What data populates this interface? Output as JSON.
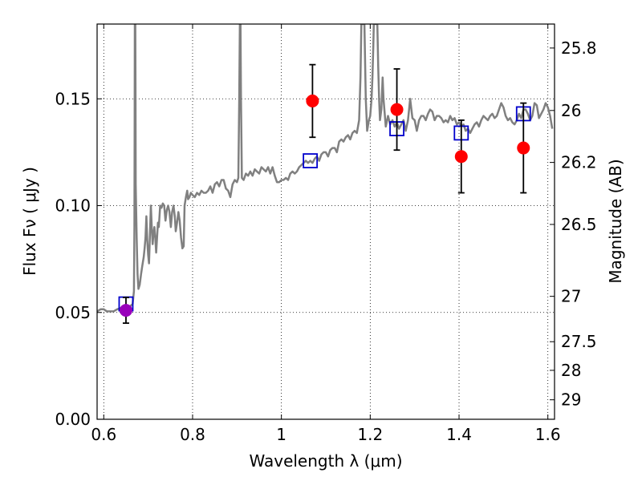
{
  "chart_data": {
    "type": "scatter",
    "xlabel": "Wavelength  λ (μm)",
    "ylabel_left": "Flux  Fν  ( μJy )",
    "ylabel_right": "Magnitude (AB)",
    "xlim": [
      0.585,
      1.615
    ],
    "ylim": [
      0.0,
      0.185
    ],
    "grid": true,
    "x_ticks": [
      {
        "value": 0.6,
        "label": "0.6"
      },
      {
        "value": 0.8,
        "label": "0.8"
      },
      {
        "value": 1.0,
        "label": "1"
      },
      {
        "value": 1.2,
        "label": "1.2"
      },
      {
        "value": 1.4,
        "label": "1.4"
      },
      {
        "value": 1.6,
        "label": "1.6"
      }
    ],
    "y_ticks": [
      {
        "value": 0.0,
        "label": "0.00"
      },
      {
        "value": 0.05,
        "label": "0.05"
      },
      {
        "value": 0.1,
        "label": "0.10"
      },
      {
        "value": 0.15,
        "label": "0.15"
      }
    ],
    "right_ticks": [
      {
        "value": 25.8,
        "label": "25.8"
      },
      {
        "value": 26.0,
        "label": "26"
      },
      {
        "value": 26.2,
        "label": "26.2"
      },
      {
        "value": 26.5,
        "label": "26.5"
      },
      {
        "value": 27.0,
        "label": "27"
      },
      {
        "value": 27.5,
        "label": "27.5"
      },
      {
        "value": 28.0,
        "label": "28"
      },
      {
        "value": 29.0,
        "label": "29"
      }
    ],
    "model_spectrum": {
      "color": "#808080",
      "points": [
        [
          0.585,
          0.0505
        ],
        [
          0.593,
          0.0515
        ],
        [
          0.6,
          0.0515
        ],
        [
          0.607,
          0.0505
        ],
        [
          0.615,
          0.0505
        ],
        [
          0.622,
          0.0505
        ],
        [
          0.63,
          0.0515
        ],
        [
          0.637,
          0.052
        ],
        [
          0.645,
          0.052
        ],
        [
          0.65,
          0.052
        ],
        [
          0.655,
          0.0525
        ],
        [
          0.66,
          0.053
        ],
        [
          0.665,
          0.054
        ],
        [
          0.668,
          0.06
        ],
        [
          0.669,
          0.09
        ],
        [
          0.6695,
          0.14
        ],
        [
          0.67,
          0.185
        ],
        [
          0.671,
          0.185
        ],
        [
          0.6715,
          0.15
        ],
        [
          0.672,
          0.11
        ],
        [
          0.674,
          0.085
        ],
        [
          0.676,
          0.068
        ],
        [
          0.678,
          0.061
        ],
        [
          0.681,
          0.063
        ],
        [
          0.684,
          0.068
        ],
        [
          0.687,
          0.072
        ],
        [
          0.69,
          0.076
        ],
        [
          0.692,
          0.08
        ],
        [
          0.694,
          0.085
        ],
        [
          0.696,
          0.095
        ],
        [
          0.698,
          0.084
        ],
        [
          0.7,
          0.077
        ],
        [
          0.702,
          0.073
        ],
        [
          0.704,
          0.087
        ],
        [
          0.706,
          0.1
        ],
        [
          0.708,
          0.09
        ],
        [
          0.71,
          0.082
        ],
        [
          0.712,
          0.087
        ],
        [
          0.714,
          0.09
        ],
        [
          0.716,
          0.085
        ],
        [
          0.718,
          0.078
        ],
        [
          0.72,
          0.085
        ],
        [
          0.722,
          0.092
        ],
        [
          0.724,
          0.09
        ],
        [
          0.727,
          0.1
        ],
        [
          0.73,
          0.099
        ],
        [
          0.733,
          0.101
        ],
        [
          0.736,
          0.1
        ],
        [
          0.739,
          0.093
        ],
        [
          0.742,
          0.098
        ],
        [
          0.745,
          0.1
        ],
        [
          0.748,
          0.097
        ],
        [
          0.751,
          0.09
        ],
        [
          0.754,
          0.097
        ],
        [
          0.757,
          0.1
        ],
        [
          0.76,
          0.095
        ],
        [
          0.762,
          0.088
        ],
        [
          0.765,
          0.092
        ],
        [
          0.768,
          0.097
        ],
        [
          0.771,
          0.093
        ],
        [
          0.774,
          0.085
        ],
        [
          0.777,
          0.08
        ],
        [
          0.78,
          0.081
        ],
        [
          0.782,
          0.1
        ],
        [
          0.785,
          0.104
        ],
        [
          0.788,
          0.107
        ],
        [
          0.79,
          0.103
        ],
        [
          0.793,
          0.104
        ],
        [
          0.796,
          0.106
        ],
        [
          0.8,
          0.105
        ],
        [
          0.805,
          0.104
        ],
        [
          0.81,
          0.106
        ],
        [
          0.815,
          0.105
        ],
        [
          0.82,
          0.107
        ],
        [
          0.825,
          0.106
        ],
        [
          0.83,
          0.106
        ],
        [
          0.835,
          0.107
        ],
        [
          0.84,
          0.109
        ],
        [
          0.845,
          0.106
        ],
        [
          0.85,
          0.11
        ],
        [
          0.855,
          0.111
        ],
        [
          0.86,
          0.109
        ],
        [
          0.865,
          0.112
        ],
        [
          0.87,
          0.112
        ],
        [
          0.875,
          0.108
        ],
        [
          0.88,
          0.107
        ],
        [
          0.885,
          0.104
        ],
        [
          0.89,
          0.11
        ],
        [
          0.895,
          0.112
        ],
        [
          0.9,
          0.111
        ],
        [
          0.903,
          0.113
        ],
        [
          0.905,
          0.15
        ],
        [
          0.9065,
          0.185
        ],
        [
          0.908,
          0.185
        ],
        [
          0.909,
          0.15
        ],
        [
          0.911,
          0.113
        ],
        [
          0.915,
          0.112
        ],
        [
          0.92,
          0.115
        ],
        [
          0.925,
          0.114
        ],
        [
          0.93,
          0.116
        ],
        [
          0.935,
          0.114
        ],
        [
          0.94,
          0.117
        ],
        [
          0.945,
          0.116
        ],
        [
          0.95,
          0.115
        ],
        [
          0.955,
          0.118
        ],
        [
          0.96,
          0.117
        ],
        [
          0.965,
          0.116
        ],
        [
          0.97,
          0.118
        ],
        [
          0.975,
          0.115
        ],
        [
          0.98,
          0.118
        ],
        [
          0.985,
          0.114
        ],
        [
          0.99,
          0.111
        ],
        [
          0.995,
          0.111
        ],
        [
          1.0,
          0.112
        ],
        [
          1.005,
          0.112
        ],
        [
          1.01,
          0.113
        ],
        [
          1.015,
          0.112
        ],
        [
          1.02,
          0.115
        ],
        [
          1.025,
          0.116
        ],
        [
          1.03,
          0.115
        ],
        [
          1.035,
          0.116
        ],
        [
          1.04,
          0.118
        ],
        [
          1.045,
          0.119
        ],
        [
          1.05,
          0.12
        ],
        [
          1.055,
          0.121
        ],
        [
          1.06,
          0.12
        ],
        [
          1.065,
          0.121
        ],
        [
          1.07,
          0.12
        ],
        [
          1.075,
          0.122
        ],
        [
          1.08,
          0.123
        ],
        [
          1.085,
          0.121
        ],
        [
          1.09,
          0.124
        ],
        [
          1.095,
          0.125
        ],
        [
          1.1,
          0.125
        ],
        [
          1.105,
          0.123
        ],
        [
          1.11,
          0.126
        ],
        [
          1.115,
          0.127
        ],
        [
          1.12,
          0.127
        ],
        [
          1.125,
          0.125
        ],
        [
          1.13,
          0.13
        ],
        [
          1.135,
          0.131
        ],
        [
          1.14,
          0.13
        ],
        [
          1.145,
          0.132
        ],
        [
          1.15,
          0.133
        ],
        [
          1.155,
          0.131
        ],
        [
          1.16,
          0.134
        ],
        [
          1.165,
          0.135
        ],
        [
          1.17,
          0.134
        ],
        [
          1.175,
          0.14
        ],
        [
          1.178,
          0.16
        ],
        [
          1.18,
          0.185
        ],
        [
          1.187,
          0.185
        ],
        [
          1.19,
          0.15
        ],
        [
          1.193,
          0.135
        ],
        [
          1.197,
          0.14
        ],
        [
          1.2,
          0.142
        ],
        [
          1.203,
          0.15
        ],
        [
          1.205,
          0.16
        ],
        [
          1.207,
          0.175
        ],
        [
          1.208,
          0.185
        ],
        [
          1.216,
          0.185
        ],
        [
          1.218,
          0.165
        ],
        [
          1.22,
          0.15
        ],
        [
          1.222,
          0.14
        ],
        [
          1.225,
          0.145
        ],
        [
          1.228,
          0.16
        ],
        [
          1.23,
          0.15
        ],
        [
          1.235,
          0.137
        ],
        [
          1.24,
          0.142
        ],
        [
          1.245,
          0.138
        ],
        [
          1.25,
          0.14
        ],
        [
          1.255,
          0.137
        ],
        [
          1.26,
          0.139
        ],
        [
          1.265,
          0.136
        ],
        [
          1.27,
          0.138
        ],
        [
          1.275,
          0.14
        ],
        [
          1.28,
          0.135
        ],
        [
          1.285,
          0.14
        ],
        [
          1.29,
          0.15
        ],
        [
          1.295,
          0.141
        ],
        [
          1.3,
          0.14
        ],
        [
          1.305,
          0.135
        ],
        [
          1.31,
          0.14
        ],
        [
          1.315,
          0.142
        ],
        [
          1.32,
          0.142
        ],
        [
          1.325,
          0.14
        ],
        [
          1.33,
          0.143
        ],
        [
          1.335,
          0.145
        ],
        [
          1.34,
          0.144
        ],
        [
          1.345,
          0.14
        ],
        [
          1.35,
          0.142
        ],
        [
          1.355,
          0.142
        ],
        [
          1.36,
          0.141
        ],
        [
          1.365,
          0.139
        ],
        [
          1.37,
          0.14
        ],
        [
          1.375,
          0.139
        ],
        [
          1.38,
          0.142
        ],
        [
          1.385,
          0.14
        ],
        [
          1.39,
          0.141
        ],
        [
          1.395,
          0.138
        ],
        [
          1.4,
          0.139
        ],
        [
          1.405,
          0.137
        ],
        [
          1.41,
          0.138
        ],
        [
          1.415,
          0.135
        ],
        [
          1.42,
          0.136
        ],
        [
          1.425,
          0.134
        ],
        [
          1.43,
          0.136
        ],
        [
          1.435,
          0.138
        ],
        [
          1.44,
          0.139
        ],
        [
          1.445,
          0.137
        ],
        [
          1.45,
          0.14
        ],
        [
          1.455,
          0.142
        ],
        [
          1.46,
          0.141
        ],
        [
          1.465,
          0.14
        ],
        [
          1.47,
          0.142
        ],
        [
          1.475,
          0.143
        ],
        [
          1.48,
          0.141
        ],
        [
          1.485,
          0.142
        ],
        [
          1.49,
          0.145
        ],
        [
          1.495,
          0.148
        ],
        [
          1.5,
          0.146
        ],
        [
          1.505,
          0.142
        ],
        [
          1.51,
          0.14
        ],
        [
          1.515,
          0.141
        ],
        [
          1.52,
          0.139
        ],
        [
          1.525,
          0.138
        ],
        [
          1.53,
          0.14
        ],
        [
          1.535,
          0.143
        ],
        [
          1.54,
          0.141
        ],
        [
          1.545,
          0.145
        ],
        [
          1.55,
          0.145
        ],
        [
          1.555,
          0.143
        ],
        [
          1.56,
          0.14
        ],
        [
          1.565,
          0.142
        ],
        [
          1.57,
          0.148
        ],
        [
          1.575,
          0.147
        ],
        [
          1.58,
          0.141
        ],
        [
          1.585,
          0.143
        ],
        [
          1.59,
          0.145
        ],
        [
          1.595,
          0.148
        ],
        [
          1.6,
          0.146
        ],
        [
          1.605,
          0.142
        ],
        [
          1.61,
          0.136
        ]
      ]
    },
    "model_photometry": {
      "color": "#0000cc",
      "points": [
        {
          "x": 0.65,
          "y": 0.054
        },
        {
          "x": 1.065,
          "y": 0.121
        },
        {
          "x": 1.26,
          "y": 0.136
        },
        {
          "x": 1.405,
          "y": 0.134
        },
        {
          "x": 1.545,
          "y": 0.143
        }
      ]
    },
    "observed": [
      {
        "x": 0.65,
        "y": 0.051,
        "err": 0.006,
        "color": "#9900bb"
      },
      {
        "x": 1.07,
        "y": 0.149,
        "err": 0.017,
        "color": "#ff0000"
      },
      {
        "x": 1.26,
        "y": 0.145,
        "err": 0.019,
        "color": "#ff0000"
      },
      {
        "x": 1.405,
        "y": 0.123,
        "err": 0.017,
        "color": "#ff0000"
      },
      {
        "x": 1.545,
        "y": 0.127,
        "err": 0.021,
        "color": "#ff0000"
      }
    ]
  }
}
